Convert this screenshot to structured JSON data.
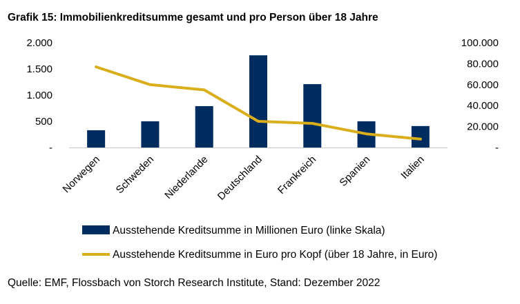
{
  "title": "Grafik 15: Immobilienkreditsumme gesamt und pro Person über 18 Jahre",
  "source": "Quelle: EMF, Flossbach von Storch Research Institute, Stand: Dezember 2022",
  "colors": {
    "bar": "#002C5F",
    "line": "#D9AE1A",
    "axis": "#C8C8C8"
  },
  "chart_data": {
    "type": "bar",
    "categories": [
      "Norwegen",
      "Schweden",
      "Niederlande",
      "Deutschland",
      "Frankreich",
      "Spanien",
      "Italien"
    ],
    "series": [
      {
        "name": "Ausstehende Kreditsumme in Millionen Euro (linke Skala)",
        "type": "bar",
        "axis": "left",
        "values": [
          330,
          500,
          790,
          1760,
          1210,
          500,
          410
        ]
      },
      {
        "name": "Ausstehende Kreditsumme in Euro pro Kopf (über 18 Jahre, in Euro)",
        "type": "line",
        "axis": "right",
        "values": [
          77000,
          60000,
          55000,
          25000,
          23000,
          13000,
          8000
        ]
      }
    ],
    "y_left": {
      "ylim": [
        0,
        2000
      ],
      "ticks": [
        0,
        500,
        1000,
        1500,
        2000
      ],
      "tick_labels": [
        "-",
        "500",
        "1.000",
        "1.500",
        "2.000"
      ]
    },
    "y_right": {
      "ylim": [
        0,
        100000
      ],
      "ticks": [
        0,
        20000,
        40000,
        60000,
        80000,
        100000
      ],
      "tick_labels": [
        "-",
        "20.000",
        "40.000",
        "60.000",
        "80.000",
        "100.000"
      ]
    },
    "grid": false,
    "legend_position": "bottom"
  }
}
